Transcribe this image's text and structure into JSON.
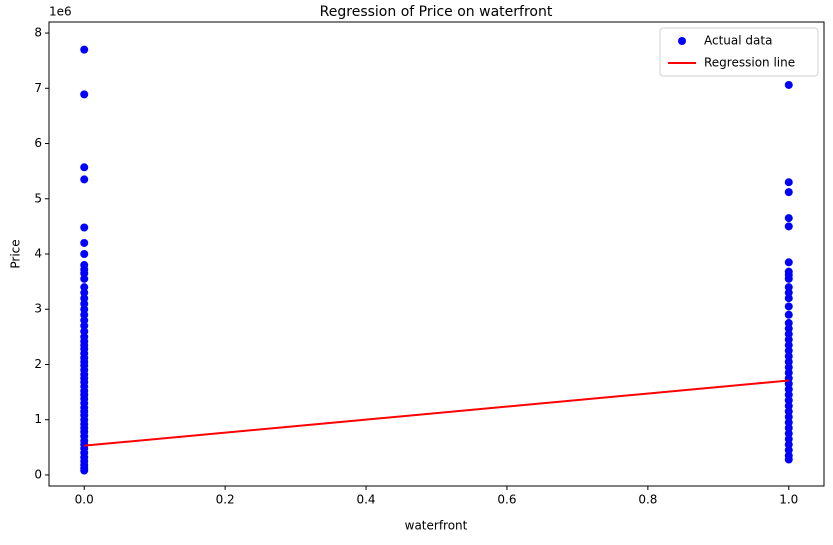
{
  "chart_data": {
    "type": "scatter",
    "title": "Regression of Price on waterfront",
    "x_label": "waterfront",
    "y_label": "Price",
    "y_offset_label": "1e6",
    "xlim": [
      -0.05,
      1.05
    ],
    "ylim": [
      -0.2,
      8.2
    ],
    "xticks": [
      {
        "value": 0,
        "label": "0.0"
      },
      0.2,
      0.4,
      0.6,
      0.8,
      {
        "value": 1,
        "label": "1.0"
      }
    ],
    "yticks": [
      0,
      1,
      2,
      3,
      4,
      5,
      6,
      7,
      8
    ],
    "legend": "upper right",
    "series": [
      {
        "name": "Actual data",
        "color": "#0000ff",
        "kind": "points",
        "x": [
          0,
          0,
          0,
          0,
          0,
          0,
          0,
          0,
          0,
          0,
          0,
          0,
          0,
          0,
          0,
          0,
          0,
          0,
          0,
          0,
          0,
          0,
          0,
          0,
          0,
          0,
          0,
          0,
          0,
          0,
          0,
          0,
          0,
          0,
          0,
          0,
          0,
          0,
          0,
          0,
          0,
          0,
          0,
          0,
          0,
          0,
          0,
          0,
          0,
          0,
          0,
          0,
          0,
          0,
          1,
          1,
          1,
          1,
          1,
          1,
          1,
          1,
          1,
          1,
          1,
          1,
          1,
          1,
          1,
          1,
          1,
          1,
          1,
          1,
          1,
          1,
          1,
          1,
          1,
          1,
          1,
          1,
          1,
          1,
          1,
          1,
          1,
          1,
          1,
          1,
          1,
          1,
          1,
          1
        ],
        "values": [
          0.08,
          0.12,
          0.18,
          0.25,
          0.32,
          0.4,
          0.48,
          0.55,
          0.62,
          0.7,
          0.78,
          0.85,
          0.92,
          1.0,
          1.08,
          1.15,
          1.22,
          1.3,
          1.38,
          1.45,
          1.52,
          1.6,
          1.68,
          1.75,
          1.82,
          1.9,
          1.98,
          2.05,
          2.12,
          2.2,
          2.28,
          2.35,
          2.42,
          2.5,
          2.6,
          2.7,
          2.8,
          2.9,
          3.0,
          3.1,
          3.2,
          3.3,
          3.4,
          3.55,
          3.65,
          3.72,
          3.8,
          4.0,
          4.2,
          4.48,
          5.35,
          5.57,
          6.89,
          7.7,
          0.28,
          0.35,
          0.45,
          0.55,
          0.65,
          0.75,
          0.85,
          0.95,
          1.05,
          1.15,
          1.25,
          1.35,
          1.45,
          1.55,
          1.65,
          1.75,
          1.85,
          1.95,
          2.05,
          2.15,
          2.25,
          2.35,
          2.45,
          2.55,
          2.65,
          2.75,
          2.9,
          3.05,
          3.2,
          3.3,
          3.4,
          3.55,
          3.62,
          3.68,
          3.85,
          4.5,
          4.65,
          5.12,
          5.3,
          7.06
        ]
      },
      {
        "name": "Regression line",
        "color": "#ff0000",
        "kind": "line",
        "x": [
          0,
          1
        ],
        "values": [
          0.53,
          1.71
        ]
      }
    ]
  }
}
